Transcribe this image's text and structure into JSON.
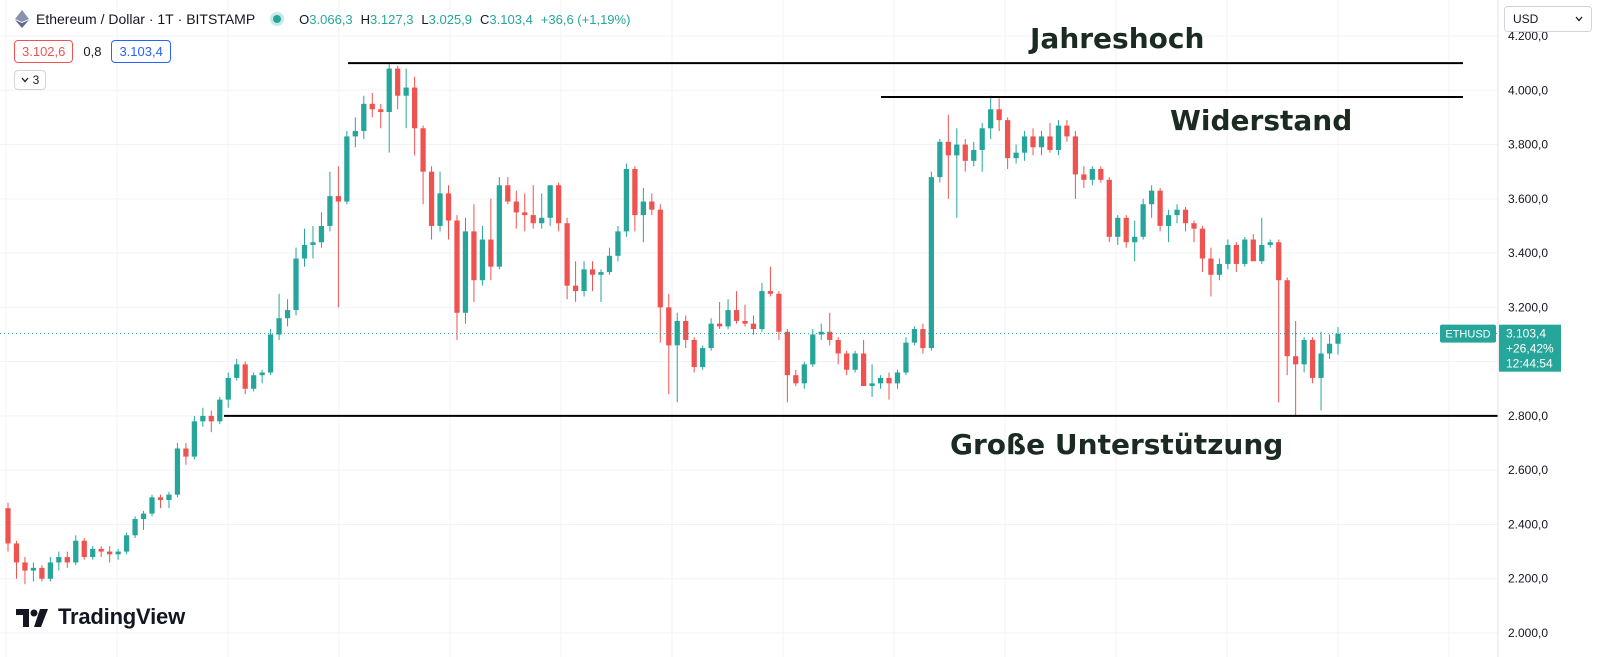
{
  "legend": {
    "symbol": "Ethereum / Dollar",
    "interval": "1T",
    "exchange": "BITSTAMP",
    "open_label": "O",
    "open": "3.066,3",
    "high_label": "H",
    "high": "3.127,3",
    "low_label": "L",
    "low": "3.025,9",
    "close_label": "C",
    "close": "3.103,4",
    "change": "+36,6 (+1,19%)",
    "sell_price": "3.102,6",
    "spread": "0,8",
    "buy_price": "3.103,4",
    "collapse_count": "3"
  },
  "currency_select": "USD",
  "last_price": {
    "ticker": "ETHUSD",
    "price": "3.103,4",
    "change_pct": "+26,42%",
    "countdown": "12:44:54"
  },
  "annotations": {
    "high_label": "Jahreshoch",
    "resistance_label": "Widerstand",
    "support_label": "Große Unterstützung"
  },
  "brand": "TradingView",
  "colors": {
    "up": "#26a69a",
    "down": "#ef5350",
    "grid": "#f0f3fa",
    "axis_text": "#131722",
    "line": "#000000"
  },
  "chart_data": {
    "type": "candlestick",
    "y_axis_ticks": [
      "4.200,0",
      "4.000,0",
      "3.800,0",
      "3.600,0",
      "3.400,0",
      "3.200,0",
      "3.000,0",
      "2.800,0",
      "2.600,0",
      "2.400,0",
      "2.200,0",
      "2.000,0"
    ],
    "ylim": [
      2000,
      4200
    ],
    "levels": {
      "jahreshoch": 4100,
      "widerstand": 3975,
      "unterstuetzung": 2800
    },
    "candles": [
      [
        2460,
        2480,
        2300,
        2330
      ],
      [
        2330,
        2340,
        2200,
        2260
      ],
      [
        2260,
        2280,
        2180,
        2230
      ],
      [
        2230,
        2260,
        2190,
        2240
      ],
      [
        2240,
        2250,
        2190,
        2200
      ],
      [
        2200,
        2280,
        2190,
        2260
      ],
      [
        2260,
        2300,
        2230,
        2280
      ],
      [
        2280,
        2300,
        2240,
        2260
      ],
      [
        2260,
        2360,
        2250,
        2340
      ],
      [
        2340,
        2350,
        2270,
        2280
      ],
      [
        2280,
        2320,
        2270,
        2310
      ],
      [
        2310,
        2320,
        2280,
        2300
      ],
      [
        2300,
        2320,
        2260,
        2290
      ],
      [
        2290,
        2310,
        2270,
        2300
      ],
      [
        2300,
        2370,
        2290,
        2360
      ],
      [
        2360,
        2430,
        2350,
        2420
      ],
      [
        2420,
        2450,
        2380,
        2440
      ],
      [
        2440,
        2510,
        2430,
        2500
      ],
      [
        2500,
        2510,
        2460,
        2490
      ],
      [
        2490,
        2520,
        2460,
        2510
      ],
      [
        2510,
        2700,
        2500,
        2680
      ],
      [
        2680,
        2700,
        2620,
        2650
      ],
      [
        2650,
        2800,
        2640,
        2780
      ],
      [
        2780,
        2830,
        2760,
        2800
      ],
      [
        2800,
        2820,
        2740,
        2780
      ],
      [
        2780,
        2870,
        2770,
        2860
      ],
      [
        2860,
        2960,
        2830,
        2940
      ],
      [
        2940,
        3010,
        2930,
        2990
      ],
      [
        2990,
        3000,
        2880,
        2900
      ],
      [
        2900,
        2960,
        2890,
        2950
      ],
      [
        2950,
        2970,
        2920,
        2960
      ],
      [
        2960,
        3120,
        2950,
        3100
      ],
      [
        3100,
        3250,
        3080,
        3160
      ],
      [
        3160,
        3230,
        3130,
        3190
      ],
      [
        3190,
        3420,
        3170,
        3380
      ],
      [
        3380,
        3490,
        3350,
        3430
      ],
      [
        3430,
        3500,
        3380,
        3440
      ],
      [
        3440,
        3550,
        3420,
        3500
      ],
      [
        3500,
        3700,
        3480,
        3610
      ],
      [
        3610,
        3720,
        3200,
        3590
      ],
      [
        3590,
        3850,
        3580,
        3830
      ],
      [
        3830,
        3900,
        3790,
        3850
      ],
      [
        3850,
        3980,
        3820,
        3950
      ],
      [
        3950,
        3990,
        3900,
        3930
      ],
      [
        3930,
        3950,
        3860,
        3920
      ],
      [
        3920,
        4100,
        3770,
        4080
      ],
      [
        4080,
        4090,
        3930,
        3980
      ],
      [
        3980,
        4080,
        3860,
        4010
      ],
      [
        4010,
        4050,
        3760,
        3860
      ],
      [
        3860,
        3870,
        3580,
        3700
      ],
      [
        3700,
        3720,
        3450,
        3500
      ],
      [
        3500,
        3700,
        3480,
        3620
      ],
      [
        3620,
        3650,
        3450,
        3520
      ],
      [
        3520,
        3540,
        3080,
        3180
      ],
      [
        3180,
        3530,
        3140,
        3480
      ],
      [
        3480,
        3580,
        3220,
        3300
      ],
      [
        3300,
        3500,
        3280,
        3450
      ],
      [
        3450,
        3600,
        3300,
        3350
      ],
      [
        3350,
        3680,
        3340,
        3650
      ],
      [
        3650,
        3680,
        3580,
        3590
      ],
      [
        3590,
        3630,
        3490,
        3550
      ],
      [
        3550,
        3620,
        3480,
        3540
      ],
      [
        3540,
        3650,
        3490,
        3510
      ],
      [
        3510,
        3620,
        3490,
        3530
      ],
      [
        3530,
        3650,
        3500,
        3650
      ],
      [
        3650,
        3660,
        3480,
        3510
      ],
      [
        3510,
        3530,
        3230,
        3280
      ],
      [
        3280,
        3370,
        3220,
        3260
      ],
      [
        3260,
        3370,
        3240,
        3340
      ],
      [
        3340,
        3370,
        3260,
        3320
      ],
      [
        3320,
        3340,
        3220,
        3330
      ],
      [
        3330,
        3420,
        3320,
        3390
      ],
      [
        3390,
        3500,
        3370,
        3480
      ],
      [
        3480,
        3730,
        3460,
        3710
      ],
      [
        3710,
        3720,
        3480,
        3540
      ],
      [
        3540,
        3640,
        3440,
        3590
      ],
      [
        3590,
        3620,
        3540,
        3560
      ],
      [
        3560,
        3580,
        3070,
        3200
      ],
      [
        3200,
        3250,
        2880,
        3060
      ],
      [
        3060,
        3180,
        2850,
        3150
      ],
      [
        3150,
        3170,
        3050,
        3080
      ],
      [
        3080,
        3090,
        2960,
        2980
      ],
      [
        2980,
        3060,
        2970,
        3050
      ],
      [
        3050,
        3160,
        3040,
        3140
      ],
      [
        3140,
        3220,
        3120,
        3130
      ],
      [
        3130,
        3230,
        3120,
        3190
      ],
      [
        3190,
        3260,
        3140,
        3150
      ],
      [
        3150,
        3210,
        3130,
        3140
      ],
      [
        3140,
        3170,
        3100,
        3120
      ],
      [
        3120,
        3290,
        3110,
        3260
      ],
      [
        3260,
        3350,
        3240,
        3250
      ],
      [
        3250,
        3260,
        3080,
        3110
      ],
      [
        3110,
        3120,
        2850,
        2950
      ],
      [
        2950,
        2970,
        2910,
        2920
      ],
      [
        2920,
        3000,
        2900,
        2990
      ],
      [
        2990,
        3120,
        2980,
        3100
      ],
      [
        3100,
        3140,
        3080,
        3110
      ],
      [
        3110,
        3180,
        3060,
        3080
      ],
      [
        3080,
        3090,
        2990,
        3030
      ],
      [
        3030,
        3040,
        2950,
        2970
      ],
      [
        2970,
        3040,
        2960,
        3030
      ],
      [
        3030,
        3080,
        2920,
        2910
      ],
      [
        2910,
        2990,
        2870,
        2920
      ],
      [
        2920,
        2950,
        2900,
        2940
      ],
      [
        2940,
        2960,
        2860,
        2920
      ],
      [
        2920,
        2970,
        2900,
        2960
      ],
      [
        2960,
        3090,
        2950,
        3070
      ],
      [
        3070,
        3130,
        3060,
        3120
      ],
      [
        3120,
        3140,
        3030,
        3050
      ],
      [
        3050,
        3700,
        3040,
        3680
      ],
      [
        3680,
        3820,
        3660,
        3810
      ],
      [
        3810,
        3910,
        3600,
        3760
      ],
      [
        3760,
        3860,
        3530,
        3800
      ],
      [
        3800,
        3820,
        3700,
        3740
      ],
      [
        3740,
        3810,
        3720,
        3780
      ],
      [
        3780,
        3880,
        3700,
        3860
      ],
      [
        3860,
        3980,
        3820,
        3930
      ],
      [
        3930,
        3970,
        3850,
        3890
      ],
      [
        3890,
        3900,
        3710,
        3750
      ],
      [
        3750,
        3800,
        3730,
        3770
      ],
      [
        3770,
        3850,
        3740,
        3830
      ],
      [
        3830,
        3860,
        3760,
        3790
      ],
      [
        3790,
        3850,
        3760,
        3830
      ],
      [
        3830,
        3880,
        3770,
        3780
      ],
      [
        3780,
        3890,
        3760,
        3870
      ],
      [
        3870,
        3890,
        3810,
        3830
      ],
      [
        3830,
        3850,
        3600,
        3690
      ],
      [
        3690,
        3720,
        3640,
        3670
      ],
      [
        3670,
        3720,
        3650,
        3710
      ],
      [
        3710,
        3720,
        3660,
        3670
      ],
      [
        3670,
        3680,
        3440,
        3460
      ],
      [
        3460,
        3540,
        3430,
        3530
      ],
      [
        3530,
        3540,
        3420,
        3440
      ],
      [
        3440,
        3520,
        3370,
        3460
      ],
      [
        3460,
        3600,
        3450,
        3580
      ],
      [
        3580,
        3650,
        3530,
        3630
      ],
      [
        3630,
        3640,
        3480,
        3500
      ],
      [
        3500,
        3560,
        3440,
        3540
      ],
      [
        3540,
        3580,
        3510,
        3560
      ],
      [
        3560,
        3570,
        3480,
        3510
      ],
      [
        3510,
        3520,
        3440,
        3490
      ],
      [
        3490,
        3500,
        3330,
        3380
      ],
      [
        3380,
        3420,
        3240,
        3320
      ],
      [
        3320,
        3380,
        3300,
        3360
      ],
      [
        3360,
        3450,
        3340,
        3430
      ],
      [
        3430,
        3440,
        3330,
        3360
      ],
      [
        3360,
        3460,
        3350,
        3450
      ],
      [
        3450,
        3470,
        3380,
        3370
      ],
      [
        3370,
        3530,
        3360,
        3430
      ],
      [
        3430,
        3450,
        3420,
        3440
      ],
      [
        3440,
        3450,
        2850,
        3300
      ],
      [
        3300,
        3310,
        2950,
        3020
      ],
      [
        3020,
        3150,
        2800,
        2990
      ],
      [
        2990,
        3090,
        2960,
        3080
      ],
      [
        3080,
        3090,
        2920,
        2940
      ],
      [
        2940,
        3110,
        2820,
        3030
      ],
      [
        3030,
        3100,
        3010,
        3066
      ],
      [
        3066,
        3127,
        3026,
        3103
      ]
    ]
  }
}
